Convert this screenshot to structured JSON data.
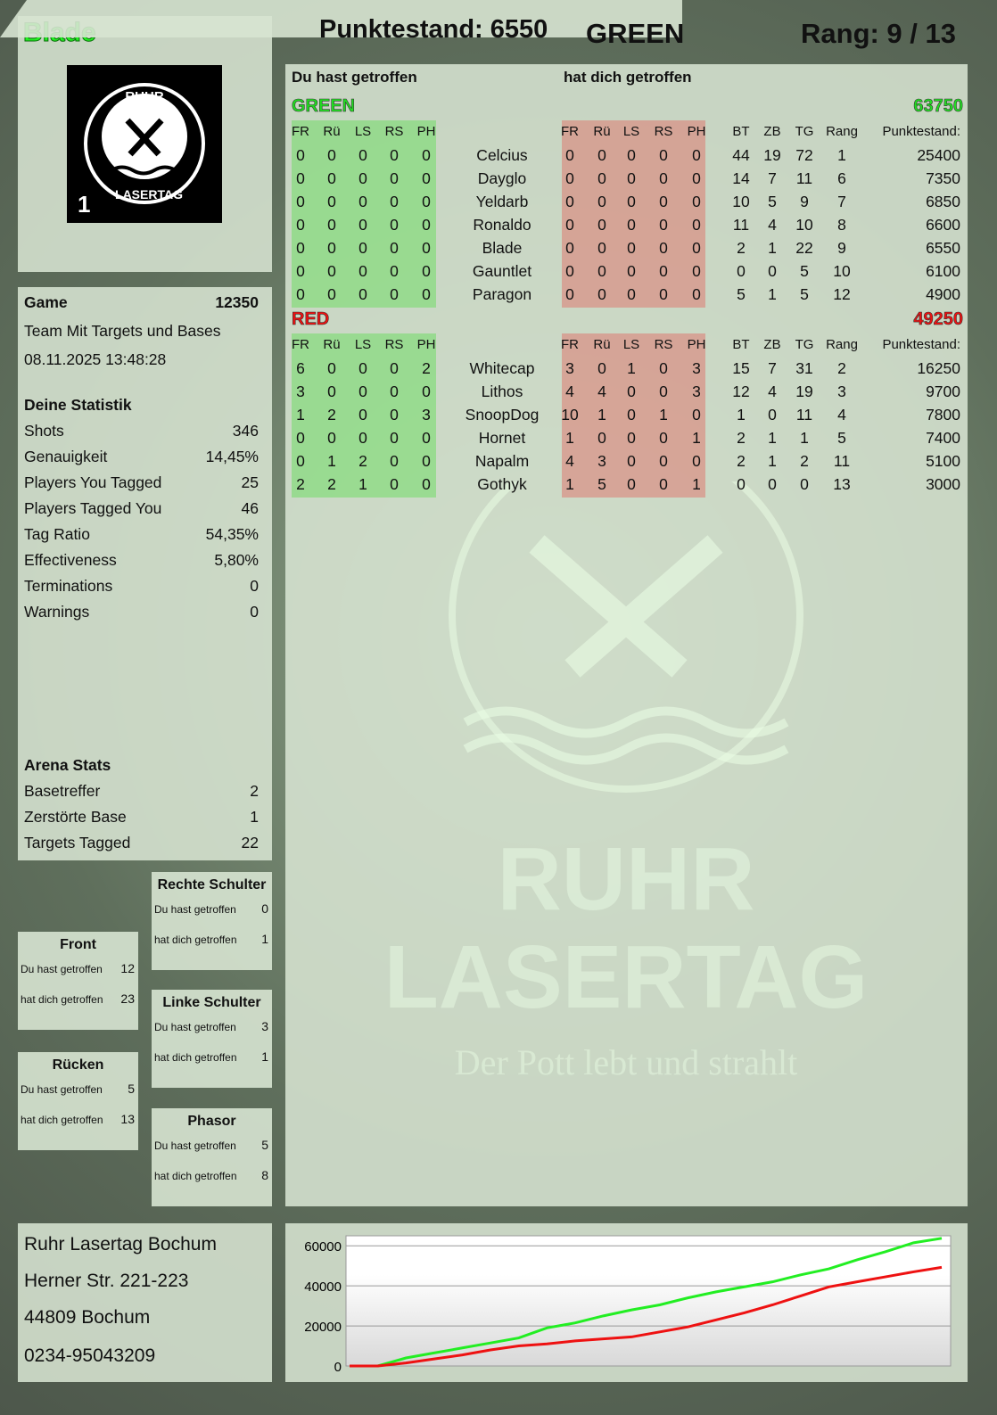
{
  "player": {
    "name": "Blade",
    "score_label": "Punktestand: 6550",
    "team": "GREEN",
    "rank_label": "Rang: 9 / 13"
  },
  "logo": {
    "text_top": "RUHR",
    "text_bottom": "LASERTAG",
    "badge": "1",
    "watermark_line1": "RUHR",
    "watermark_line2": "LASERTAG",
    "watermark_slogan": "Der Pott lebt und strahlt"
  },
  "game": {
    "label": "Game",
    "number": "12350",
    "mode": "Team Mit Targets und Bases",
    "datetime": "08.11.2025 13:48:28"
  },
  "stats": {
    "title": "Deine Statistik",
    "items": [
      {
        "label": "Shots",
        "value": "346"
      },
      {
        "label": "Genauigkeit",
        "value": "14,45%"
      },
      {
        "label": "Players You Tagged",
        "value": "25"
      },
      {
        "label": "Players Tagged You",
        "value": "46"
      },
      {
        "label": "Tag Ratio",
        "value": "54,35%"
      },
      {
        "label": "Effectiveness",
        "value": "5,80%"
      },
      {
        "label": "Terminations",
        "value": "0"
      },
      {
        "label": "Warnings",
        "value": "0"
      }
    ]
  },
  "arena": {
    "title": "Arena Stats",
    "items": [
      {
        "label": "Basetreffer",
        "value": "2"
      },
      {
        "label": "Zerstörte Base",
        "value": "1"
      },
      {
        "label": "Targets Tagged",
        "value": "22"
      }
    ]
  },
  "zones": [
    {
      "id": "front",
      "title": "Front",
      "hit": "12",
      "got": "23"
    },
    {
      "id": "ruecken",
      "title": "Rücken",
      "hit": "5",
      "got": "13"
    },
    {
      "id": "rechte-schulter",
      "title": "Rechte Schulter",
      "hit": "0",
      "got": "1"
    },
    {
      "id": "linke-schulter",
      "title": "Linke Schulter",
      "hit": "3",
      "got": "1"
    },
    {
      "id": "phasor",
      "title": "Phasor",
      "hit": "5",
      "got": "8"
    }
  ],
  "zone_labels": {
    "hit": "Du hast getroffen",
    "got": "hat dich getroffen"
  },
  "table": {
    "you_hit": "Du hast getroffen",
    "hit_you": "hat dich getroffen",
    "hit_cols": [
      "FR",
      "Rü",
      "LS",
      "RS",
      "PH"
    ],
    "stat_cols": [
      "BT",
      "ZB",
      "TG",
      "Rang",
      "Punktestand:"
    ],
    "teams": [
      {
        "name": "GREEN",
        "score": "63750",
        "color": "#22dd22",
        "players": [
          {
            "name": "Celcius",
            "hit": [
              0,
              0,
              0,
              0,
              0
            ],
            "got": [
              0,
              0,
              0,
              0,
              0
            ],
            "stats": [
              44,
              19,
              72,
              1,
              25400
            ]
          },
          {
            "name": "Dayglo",
            "hit": [
              0,
              0,
              0,
              0,
              0
            ],
            "got": [
              0,
              0,
              0,
              0,
              0
            ],
            "stats": [
              14,
              7,
              11,
              6,
              7350
            ]
          },
          {
            "name": "Yeldarb",
            "hit": [
              0,
              0,
              0,
              0,
              0
            ],
            "got": [
              0,
              0,
              0,
              0,
              0
            ],
            "stats": [
              10,
              5,
              9,
              7,
              6850
            ]
          },
          {
            "name": "Ronaldo",
            "hit": [
              0,
              0,
              0,
              0,
              0
            ],
            "got": [
              0,
              0,
              0,
              0,
              0
            ],
            "stats": [
              11,
              4,
              10,
              8,
              6600
            ]
          },
          {
            "name": "Blade",
            "hit": [
              0,
              0,
              0,
              0,
              0
            ],
            "got": [
              0,
              0,
              0,
              0,
              0
            ],
            "stats": [
              2,
              1,
              22,
              9,
              6550
            ]
          },
          {
            "name": "Gauntlet",
            "hit": [
              0,
              0,
              0,
              0,
              0
            ],
            "got": [
              0,
              0,
              0,
              0,
              0
            ],
            "stats": [
              0,
              0,
              5,
              10,
              6100
            ]
          },
          {
            "name": "Paragon",
            "hit": [
              0,
              0,
              0,
              0,
              0
            ],
            "got": [
              0,
              0,
              0,
              0,
              0
            ],
            "stats": [
              5,
              1,
              5,
              12,
              4900
            ]
          }
        ]
      },
      {
        "name": "RED",
        "score": "49250",
        "color": "#ee1111",
        "players": [
          {
            "name": "Whitecap",
            "hit": [
              6,
              0,
              0,
              0,
              2
            ],
            "got": [
              3,
              0,
              1,
              0,
              3
            ],
            "stats": [
              15,
              7,
              31,
              2,
              16250
            ]
          },
          {
            "name": "Lithos",
            "hit": [
              3,
              0,
              0,
              0,
              0
            ],
            "got": [
              4,
              4,
              0,
              0,
              3
            ],
            "stats": [
              12,
              4,
              19,
              3,
              9700
            ]
          },
          {
            "name": "SnoopDog",
            "hit": [
              1,
              2,
              0,
              0,
              3
            ],
            "got": [
              10,
              1,
              0,
              1,
              0
            ],
            "stats": [
              1,
              0,
              11,
              4,
              7800
            ]
          },
          {
            "name": "Hornet",
            "hit": [
              0,
              0,
              0,
              0,
              0
            ],
            "got": [
              1,
              0,
              0,
              0,
              1
            ],
            "stats": [
              2,
              1,
              1,
              5,
              7400
            ]
          },
          {
            "name": "Napalm",
            "hit": [
              0,
              1,
              2,
              0,
              0
            ],
            "got": [
              4,
              3,
              0,
              0,
              0
            ],
            "stats": [
              2,
              1,
              2,
              11,
              5100
            ]
          },
          {
            "name": "Gothyk",
            "hit": [
              2,
              2,
              1,
              0,
              0
            ],
            "got": [
              1,
              5,
              0,
              0,
              1
            ],
            "stats": [
              0,
              0,
              0,
              13,
              3000
            ]
          }
        ]
      }
    ]
  },
  "address": [
    "Ruhr Lasertag Bochum",
    "Herner Str. 221-223",
    "44809 Bochum",
    "0234-95043209"
  ],
  "chart_data": {
    "type": "line",
    "ylim": [
      0,
      65000
    ],
    "yticks": [
      0,
      20000,
      40000,
      60000
    ],
    "grid": true,
    "series": [
      {
        "color": "#22ee22",
        "values": [
          0,
          0,
          4000,
          6500,
          9000,
          11500,
          14000,
          19000,
          21500,
          25000,
          28000,
          30500,
          34000,
          37000,
          39500,
          42000,
          45500,
          48500,
          53000,
          57000,
          61500,
          63750
        ]
      },
      {
        "color": "#ee1111",
        "values": [
          0,
          0,
          1500,
          3500,
          5500,
          8000,
          10000,
          11000,
          12500,
          13500,
          14500,
          17000,
          19500,
          23000,
          26500,
          30500,
          35000,
          39500,
          42000,
          44500,
          47000,
          49250
        ]
      }
    ]
  }
}
